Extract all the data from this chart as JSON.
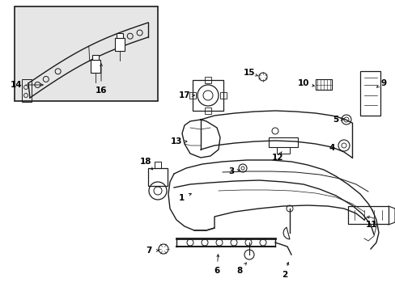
{
  "bg_color": "#ffffff",
  "line_color": "#1a1a1a",
  "text_color": "#000000",
  "inset_bg": "#e8e8e8",
  "fig_w": 4.89,
  "fig_h": 3.6,
  "dpi": 100
}
